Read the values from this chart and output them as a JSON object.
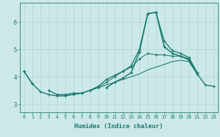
{
  "xlabel": "Humidex (Indice chaleur)",
  "bg_color": "#cce8e8",
  "line_color": "#1a7a6e",
  "grid_color": "#aad4d4",
  "xlim": [
    -0.5,
    23.5
  ],
  "ylim": [
    2.7,
    6.7
  ],
  "xticks": [
    0,
    1,
    2,
    3,
    4,
    5,
    6,
    7,
    8,
    9,
    10,
    11,
    12,
    13,
    14,
    15,
    16,
    17,
    18,
    19,
    20,
    21,
    22,
    23
  ],
  "yticks": [
    3,
    4,
    5,
    6
  ],
  "x": [
    0,
    1,
    2,
    3,
    4,
    5,
    6,
    7,
    8,
    9,
    10,
    11,
    12,
    13,
    14,
    15,
    16,
    17,
    18,
    19,
    20,
    21,
    22,
    23
  ],
  "line_spike": [
    null,
    null,
    null,
    null,
    null,
    null,
    null,
    null,
    null,
    null,
    3.6,
    3.8,
    3.95,
    4.15,
    4.9,
    6.3,
    6.35,
    5.1,
    4.85,
    4.75,
    4.65,
    4.1,
    null,
    null
  ],
  "line_mid1": [
    4.2,
    3.75,
    null,
    3.5,
    3.35,
    3.35,
    3.4,
    3.4,
    3.5,
    3.65,
    3.9,
    4.05,
    4.2,
    4.4,
    5.0,
    6.3,
    6.35,
    5.3,
    4.95,
    4.85,
    4.7,
    4.15,
    null,
    null
  ],
  "line_trend1": [
    4.2,
    3.75,
    3.45,
    3.35,
    3.3,
    3.3,
    3.35,
    3.4,
    3.5,
    3.6,
    3.8,
    4.0,
    4.2,
    4.35,
    4.65,
    4.85,
    4.8,
    4.8,
    4.75,
    4.75,
    4.6,
    4.1,
    3.7,
    3.65
  ],
  "line_trend2": [
    4.2,
    3.75,
    3.45,
    3.35,
    3.3,
    3.3,
    3.35,
    3.4,
    3.5,
    3.6,
    3.7,
    3.8,
    3.9,
    4.0,
    4.1,
    4.25,
    4.35,
    4.45,
    4.55,
    4.6,
    4.55,
    4.1,
    3.7,
    3.65
  ]
}
